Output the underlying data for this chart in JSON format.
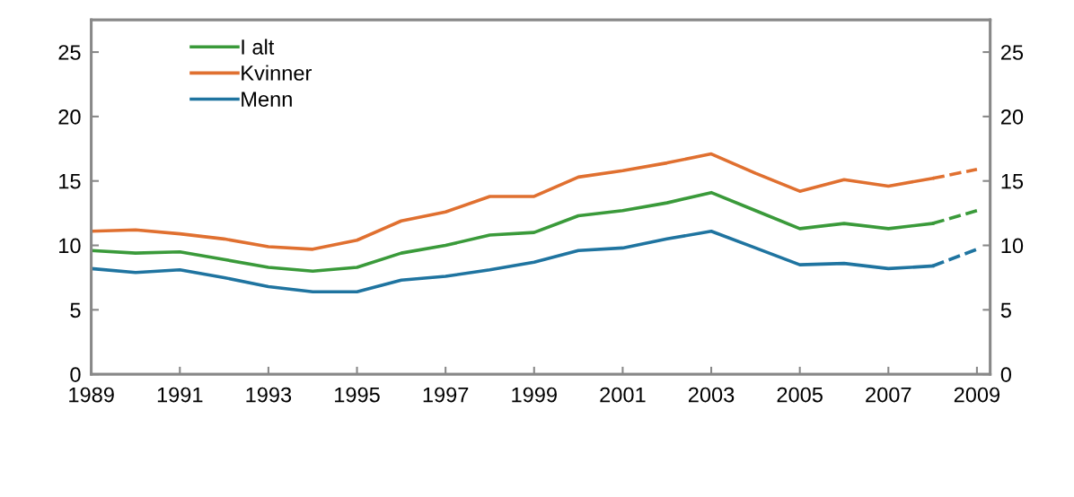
{
  "chart_data": {
    "type": "line",
    "x": [
      1989,
      1990,
      1991,
      1992,
      1993,
      1994,
      1995,
      1996,
      1997,
      1998,
      1999,
      2000,
      2001,
      2002,
      2003,
      2004,
      2005,
      2006,
      2007,
      2008,
      2009
    ],
    "series": [
      {
        "name": "I alt",
        "color": "#3a9a3a",
        "values": [
          9.6,
          9.4,
          9.5,
          8.9,
          8.3,
          8.0,
          8.3,
          9.4,
          10.0,
          10.8,
          11.0,
          12.3,
          12.7,
          13.3,
          14.1,
          12.7,
          11.3,
          11.7,
          11.3,
          11.7,
          null
        ]
      },
      {
        "name": "Kvinner",
        "color": "#e07030",
        "values": [
          11.1,
          11.2,
          10.9,
          10.5,
          9.9,
          9.7,
          10.4,
          11.9,
          12.6,
          13.8,
          13.8,
          15.3,
          15.8,
          16.4,
          17.1,
          15.6,
          14.2,
          15.1,
          14.6,
          15.2,
          null
        ]
      },
      {
        "name": "Menn",
        "color": "#1f74a0",
        "values": [
          8.2,
          7.9,
          8.1,
          7.5,
          6.8,
          6.4,
          6.4,
          7.3,
          7.6,
          8.1,
          8.7,
          9.6,
          9.8,
          10.5,
          11.1,
          9.8,
          8.5,
          8.6,
          8.2,
          8.4,
          null
        ]
      },
      {
        "color": "#3a9a3a",
        "line_style": "dashed",
        "values": [
          null,
          null,
          null,
          null,
          null,
          null,
          null,
          null,
          null,
          null,
          null,
          null,
          null,
          null,
          null,
          null,
          null,
          null,
          null,
          11.7,
          12.7
        ]
      },
      {
        "color": "#e07030",
        "line_style": "dashed",
        "values": [
          null,
          null,
          null,
          null,
          null,
          null,
          null,
          null,
          null,
          null,
          null,
          null,
          null,
          null,
          null,
          null,
          null,
          null,
          null,
          15.2,
          15.9
        ]
      },
      {
        "color": "#1f74a0",
        "line_style": "dashed",
        "values": [
          null,
          null,
          null,
          null,
          null,
          null,
          null,
          null,
          null,
          null,
          null,
          null,
          null,
          null,
          null,
          null,
          null,
          null,
          null,
          8.4,
          9.7
        ]
      }
    ],
    "xlim": [
      1989,
      2009.3
    ],
    "xticks": [
      1989,
      1991,
      1993,
      1995,
      1997,
      1999,
      2001,
      2003,
      2005,
      2007,
      2009
    ],
    "ylim": [
      0,
      27.5
    ],
    "yticks": [
      0,
      5,
      10,
      15,
      20,
      25
    ],
    "y2lim": [
      0,
      27.5
    ],
    "y2ticks": [
      0,
      5,
      10,
      15,
      20,
      25
    ],
    "line_style": "solid",
    "marker": "none",
    "grid": false,
    "legend": "top left"
  }
}
